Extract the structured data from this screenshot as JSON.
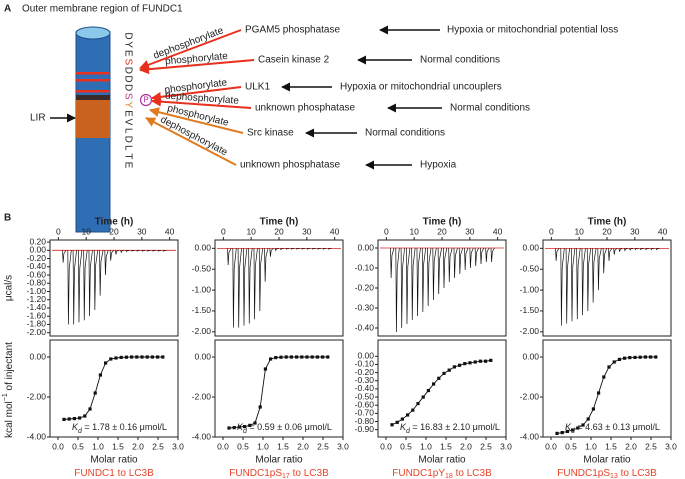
{
  "panel_a": {
    "letter": "A",
    "title": "Outer membrane region of FUNDC1",
    "lir": "LIR",
    "phospho": "P",
    "sequence": [
      {
        "letter": "D",
        "color": "#222222"
      },
      {
        "letter": "Y",
        "color": "#222222"
      },
      {
        "letter": "E",
        "color": "#222222"
      },
      {
        "letter": "S",
        "color": "#e0301e"
      },
      {
        "letter": "D",
        "color": "#222222"
      },
      {
        "letter": "D",
        "color": "#222222"
      },
      {
        "letter": "D",
        "color": "#222222"
      },
      {
        "letter": "S",
        "color": "#c0398a"
      },
      {
        "letter": "Y",
        "color": "#e07b22"
      },
      {
        "letter": "E",
        "color": "#222222"
      },
      {
        "letter": "V",
        "color": "#222222"
      },
      {
        "letter": "L",
        "color": "#222222"
      },
      {
        "letter": "D",
        "color": "#222222"
      },
      {
        "letter": "L",
        "color": "#222222"
      },
      {
        "letter": "T",
        "color": "#222222"
      },
      {
        "letter": "E",
        "color": "#222222"
      }
    ],
    "rows": [
      {
        "action": "dephosphorylate",
        "enzyme": "PGAM5 phosphatase",
        "condition": "Hypoxia or mitochondrial potential loss",
        "color": "#e8301e"
      },
      {
        "action": "phosphorylate",
        "enzyme": "Casein kinase 2",
        "condition": "Normal conditions",
        "color": "#e8301e"
      },
      {
        "action": "phosphorylate",
        "enzyme": "ULK1",
        "condition": "Hypoxia or mitochondrial uncouplers",
        "color": "#e8301e"
      },
      {
        "action": "dephosphorylate",
        "enzyme": "unknown phosphatase",
        "condition": "Normal conditions",
        "color": "#e8301e"
      },
      {
        "action": "phosphorylate",
        "enzyme": "Src kinase",
        "condition": "Normal conditions",
        "color": "#e07b22"
      },
      {
        "action": "dephosphorylate",
        "enzyme": "unknown phosphatase",
        "condition": "Hypoxia",
        "color": "#e07b22"
      }
    ]
  },
  "panel_b": {
    "letter": "B",
    "time_label": "Time (h)",
    "ratio_label": "Molar ratio",
    "y_label_top": "μcal/s",
    "y_label_bottom": "kcal mol",
    "y_label_bottom_sup": "−1",
    "y_label_bottom_end": " of injectant",
    "panels": [
      {
        "time_lim": [
          -3,
          43
        ],
        "time_ticks": [
          0,
          10,
          20,
          30,
          40
        ],
        "ratio_lim": [
          -0.2,
          3.0
        ],
        "ratio_ticks": [
          {
            "value": 0,
            "label": "0.0"
          },
          0.5,
          {
            "value": 1,
            "label": "1.0"
          },
          1.5,
          {
            "value": 2,
            "label": "2.0"
          },
          2.5,
          {
            "value": 3,
            "label": "3.0"
          }
        ],
        "top_ylim": [
          -2.08,
          0.25
        ],
        "top_yticks": [
          {
            "value": 0.2,
            "label": "0.20"
          },
          {
            "value": 0,
            "label": "0.00"
          },
          {
            "value": -0.2,
            "label": "-0.20"
          },
          {
            "value": -0.4,
            "label": "-0.40"
          },
          {
            "value": -0.6,
            "label": "-0.60"
          },
          {
            "value": -0.8,
            "label": "-0.80"
          },
          {
            "value": -1,
            "label": "-1.00"
          },
          {
            "value": -1.2,
            "label": "-1.20"
          },
          {
            "value": -1.4,
            "label": "-1.40"
          },
          {
            "value": -1.6,
            "label": "-1.60"
          },
          {
            "value": -1.8,
            "label": "-1.80"
          },
          {
            "value": -2,
            "label": "-2.00"
          }
        ],
        "bottom_ylim": [
          -4,
          0.85
        ],
        "bottom_yticks": [
          {
            "value": 0,
            "label": "0.00"
          },
          {
            "value": -2,
            "label": "-2.00"
          },
          {
            "value": -4,
            "label": "-4.00"
          }
        ],
        "raw_x": [
          1.5,
          3.4,
          5.3,
          7.2,
          9.1,
          11,
          12.9,
          14.8,
          16.7,
          18.6,
          20.5,
          22.4,
          24.3,
          26.2,
          28.1,
          30,
          31.9,
          33.8,
          35.7,
          37.6
        ],
        "raw_values": [
          -0.3,
          -1.8,
          -1.8,
          -1.75,
          -1.7,
          -1.6,
          -1.45,
          -1.1,
          -0.6,
          -0.25,
          -0.1,
          -0.05,
          -0.03,
          -0.02,
          -0.02,
          -0.02,
          -0.02,
          -0.02,
          -0.02,
          -0.02
        ],
        "ratio_x": [
          0.15,
          0.28,
          0.41,
          0.54,
          0.67,
          0.8,
          0.93,
          1.06,
          1.19,
          1.32,
          1.45,
          1.58,
          1.71,
          1.84,
          1.97,
          2.1,
          2.23,
          2.36,
          2.49,
          2.62
        ],
        "heats": [
          -3.12,
          -3.1,
          -3.08,
          -3.05,
          -2.95,
          -2.6,
          -1.8,
          -0.9,
          -0.3,
          -0.1,
          -0.05,
          -0.02,
          -0.01,
          0,
          0,
          0,
          0,
          0,
          0,
          0
        ],
        "kd_symbol": "K",
        "kd_sub": "d",
        "kd_text": " = 1.78 ± 0.16 μmol/L",
        "label": "FUNDC1 to LC3B"
      },
      {
        "time_lim": [
          -3,
          43
        ],
        "time_ticks": [
          0,
          10,
          20,
          30,
          40
        ],
        "ratio_lim": [
          -0.2,
          3.0
        ],
        "ratio_ticks": [
          {
            "value": 0,
            "label": "0.0"
          },
          0.5,
          {
            "value": 1,
            "label": "1.0"
          },
          1.5,
          {
            "value": 2,
            "label": "2.0"
          },
          2.5,
          {
            "value": 3,
            "label": "3.0"
          }
        ],
        "top_ylim": [
          -2.1,
          0.2
        ],
        "top_yticks": [
          {
            "value": 0,
            "label": "0.00"
          },
          {
            "value": -0.5,
            "label": "-0.50"
          },
          {
            "value": -1,
            "label": "-1.00"
          },
          {
            "value": -1.5,
            "label": "-1.50"
          },
          {
            "value": -2,
            "label": "-2.00"
          }
        ],
        "bottom_ylim": [
          -4,
          0.85
        ],
        "bottom_yticks": [
          {
            "value": 0,
            "label": "0.00"
          },
          {
            "value": -2,
            "label": "-2.00"
          },
          {
            "value": -4,
            "label": "-4.00"
          }
        ],
        "raw_x": [
          1.5,
          3.4,
          5.3,
          7.2,
          9.1,
          11,
          12.9,
          14.8,
          16.7,
          18.6,
          20.5,
          22.4,
          24.3,
          26.2,
          28.1,
          30,
          31.9,
          33.8,
          35.7,
          37.6
        ],
        "raw_values": [
          -0.4,
          -1.9,
          -1.9,
          -1.85,
          -1.8,
          -1.7,
          -1.5,
          -0.8,
          -0.2,
          -0.05,
          -0.03,
          -0.02,
          -0.02,
          -0.02,
          -0.02,
          -0.02,
          -0.02,
          -0.02,
          -0.02,
          -0.02
        ],
        "ratio_x": [
          0.15,
          0.28,
          0.41,
          0.54,
          0.67,
          0.8,
          0.93,
          1.06,
          1.19,
          1.32,
          1.45,
          1.58,
          1.71,
          1.84,
          1.97,
          2.1,
          2.23,
          2.36,
          2.49,
          2.62
        ],
        "heats": [
          -3.55,
          -3.53,
          -3.5,
          -3.48,
          -3.42,
          -3.3,
          -2.5,
          -0.6,
          -0.1,
          -0.03,
          -0.01,
          0,
          0,
          0,
          0,
          0,
          0,
          0,
          0,
          0
        ],
        "kd_symbol": "K",
        "kd_sub": "d",
        "kd_text": " = 0.59 ± 0.06 μmol/L",
        "label": "FUNDC1pS",
        "label_sub": "17",
        "label_end": " to LC3B"
      },
      {
        "time_lim": [
          -3,
          43
        ],
        "time_ticks": [
          0,
          10,
          20,
          30,
          40
        ],
        "ratio_lim": [
          -0.2,
          3.0
        ],
        "ratio_ticks": [
          {
            "value": 0,
            "label": "0.0"
          },
          0.5,
          {
            "value": 1,
            "label": "1.0"
          },
          1.5,
          {
            "value": 2,
            "label": "2.0"
          },
          2.5,
          {
            "value": 3,
            "label": "3.0"
          }
        ],
        "top_ylim": [
          -0.44,
          0.04
        ],
        "top_yticks": [
          {
            "value": 0,
            "label": "0.00"
          },
          {
            "value": -0.1,
            "label": "-0.10"
          },
          {
            "value": -0.2,
            "label": "-0.20"
          },
          {
            "value": -0.3,
            "label": "-0.30"
          },
          {
            "value": -0.4,
            "label": "-0.40"
          }
        ],
        "bottom_ylim": [
          -0.99,
          0.2
        ],
        "bottom_yticks": [
          {
            "value": 0,
            "label": "0.00"
          },
          {
            "value": -0.1,
            "label": "-0.10"
          },
          {
            "value": -0.2,
            "label": "-0.20"
          },
          {
            "value": -0.3,
            "label": "-0.30"
          },
          {
            "value": -0.4,
            "label": "-0.40"
          },
          {
            "value": -0.5,
            "label": "-0.50"
          },
          {
            "value": -0.6,
            "label": "-0.60"
          },
          {
            "value": -0.7,
            "label": "-0.70"
          },
          {
            "value": -0.8,
            "label": "-0.80"
          },
          {
            "value": -0.9,
            "label": "-0.90"
          }
        ],
        "raw_x": [
          1.5,
          3.4,
          5.3,
          7.2,
          9.1,
          11,
          12.9,
          14.8,
          16.7,
          18.6,
          20.5,
          22.4,
          24.3,
          26.2,
          28.1,
          30,
          31.9,
          33.8,
          35.7,
          37.6
        ],
        "raw_values": [
          -0.15,
          -0.42,
          -0.4,
          -0.38,
          -0.36,
          -0.34,
          -0.32,
          -0.29,
          -0.26,
          -0.23,
          -0.2,
          -0.17,
          -0.15,
          -0.13,
          -0.11,
          -0.1,
          -0.09,
          -0.08,
          -0.07,
          -0.07
        ],
        "ratio_x": [
          0.15,
          0.28,
          0.41,
          0.54,
          0.67,
          0.8,
          0.93,
          1.06,
          1.19,
          1.32,
          1.45,
          1.58,
          1.71,
          1.84,
          1.97,
          2.1,
          2.23,
          2.36,
          2.49,
          2.62
        ],
        "heats": [
          -0.84,
          -0.81,
          -0.77,
          -0.72,
          -0.66,
          -0.58,
          -0.5,
          -0.42,
          -0.34,
          -0.27,
          -0.21,
          -0.17,
          -0.13,
          -0.11,
          -0.09,
          -0.08,
          -0.07,
          -0.06,
          -0.06,
          -0.05
        ],
        "kd_symbol": "K",
        "kd_sub": "d",
        "kd_text": " = 16.83 ± 2.10 μmol/L",
        "label": "FUNDC1pY",
        "label_sub": "18",
        "label_end": " to LC3B"
      },
      {
        "time_lim": [
          -3,
          43
        ],
        "time_ticks": [
          0,
          10,
          20,
          30,
          40
        ],
        "ratio_lim": [
          -0.2,
          3.0
        ],
        "ratio_ticks": [
          {
            "value": 0,
            "label": "0.0"
          },
          0.5,
          {
            "value": 1,
            "label": "1.0"
          },
          1.5,
          {
            "value": 2,
            "label": "2.0"
          },
          2.5,
          {
            "value": 3,
            "label": "3.0"
          }
        ],
        "top_ylim": [
          -2.1,
          0.2
        ],
        "top_yticks": [
          {
            "value": 0,
            "label": "0.00"
          },
          {
            "value": -0.5,
            "label": "-0.50"
          },
          {
            "value": -1,
            "label": "-1.00"
          },
          {
            "value": -1.5,
            "label": "-1.50"
          },
          {
            "value": -2,
            "label": "-2.00"
          }
        ],
        "bottom_ylim": [
          -4,
          0.85
        ],
        "bottom_yticks": [
          {
            "value": 0,
            "label": "0.00"
          },
          {
            "value": -2,
            "label": "-2.00"
          },
          {
            "value": -4,
            "label": "-4.00"
          }
        ],
        "raw_x": [
          1.5,
          3.4,
          5.3,
          7.2,
          9.1,
          11,
          12.9,
          14.8,
          16.7,
          18.6,
          20.5,
          22.4,
          24.3,
          26.2,
          28.1,
          30,
          31.9,
          33.8,
          35.7,
          37.6
        ],
        "raw_values": [
          -0.3,
          -1.85,
          -1.8,
          -1.75,
          -1.7,
          -1.6,
          -1.5,
          -1.3,
          -1.0,
          -0.6,
          -0.3,
          -0.15,
          -0.08,
          -0.05,
          -0.04,
          -0.03,
          -0.03,
          -0.03,
          -0.03,
          -0.03
        ],
        "ratio_x": [
          0.15,
          0.28,
          0.41,
          0.54,
          0.67,
          0.8,
          0.93,
          1.06,
          1.19,
          1.32,
          1.45,
          1.58,
          1.71,
          1.84,
          1.97,
          2.1,
          2.23,
          2.36,
          2.49,
          2.62
        ],
        "heats": [
          -3.82,
          -3.78,
          -3.72,
          -3.65,
          -3.55,
          -3.4,
          -3.1,
          -2.6,
          -1.8,
          -1.0,
          -0.5,
          -0.25,
          -0.12,
          -0.06,
          -0.03,
          -0.02,
          -0.01,
          0,
          0,
          0
        ],
        "kd_symbol": "K",
        "kd_sub": "d",
        "kd_text": " = 4.63 ± 0.13 μmol/L",
        "label": "FUNDC1pS",
        "label_sub": "13",
        "label_end": " to LC3B"
      }
    ]
  }
}
